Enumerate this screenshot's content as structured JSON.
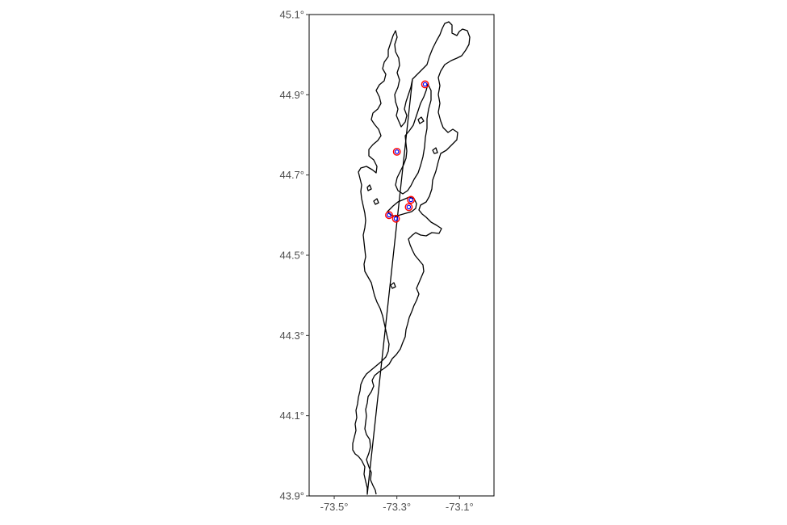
{
  "map": {
    "projection": "geographic",
    "crs_units": "degrees",
    "x_range": [
      -73.58,
      -72.99
    ],
    "y_range": [
      43.9,
      45.1
    ],
    "x_ticks": [
      {
        "value": -73.5,
        "label": "-73.5°"
      },
      {
        "value": -73.3,
        "label": "-73.3°"
      },
      {
        "value": -73.1,
        "label": "-73.1°"
      }
    ],
    "y_ticks": [
      {
        "value": 45.1,
        "label": "45.1°"
      },
      {
        "value": 44.9,
        "label": "44.9°"
      },
      {
        "value": 44.7,
        "label": "44.7°"
      },
      {
        "value": 44.5,
        "label": "44.5°"
      },
      {
        "value": 44.3,
        "label": "44.3°"
      },
      {
        "value": 44.1,
        "label": "44.1°"
      },
      {
        "value": 43.9,
        "label": "43.9°"
      }
    ],
    "background": "white",
    "grid": false,
    "outline_color": "#000000",
    "site_outer_color": "#ff0000",
    "site_inner_color": "#0000ff"
  },
  "chart_data": {
    "type": "scatter",
    "title": "",
    "xlabel": "",
    "ylabel": "",
    "xlim": [
      -73.58,
      -72.99
    ],
    "ylim": [
      43.9,
      45.1
    ],
    "grid": false,
    "legend": "none",
    "series": [
      {
        "points": [
          {
            "x": -73.21,
            "y": 44.926
          },
          {
            "x": -73.3,
            "y": 44.758
          },
          {
            "x": -73.255,
            "y": 44.638
          },
          {
            "x": -73.262,
            "y": 44.62
          },
          {
            "x": -73.325,
            "y": 44.6
          },
          {
            "x": -73.303,
            "y": 44.591
          }
        ]
      }
    ]
  }
}
